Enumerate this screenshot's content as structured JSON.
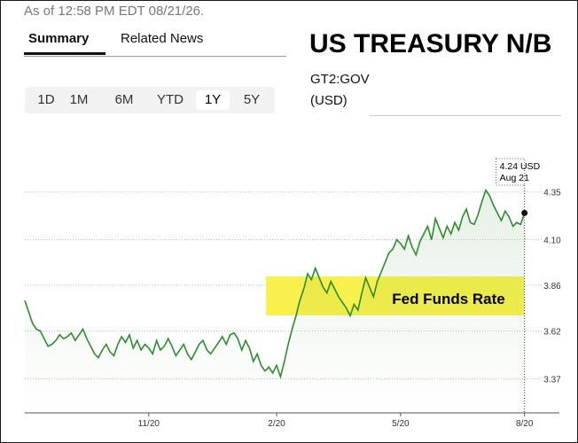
{
  "header": {
    "as_of": "As of 12:58 PM EDT 08/21/26.",
    "tabs": [
      "Summary",
      "Related News"
    ],
    "title": "US TREASURY N/B",
    "ticker": "GT2:GOV",
    "currency": "(USD)",
    "ranges": [
      "1D",
      "1M",
      "6M",
      "YTD",
      "1Y",
      "5Y"
    ],
    "selected_range": "1Y"
  },
  "chart_data": {
    "type": "line",
    "color": "#2e8b2e",
    "x": [
      0,
      1,
      2,
      3,
      4,
      5,
      6,
      7,
      8,
      9,
      10,
      11,
      12,
      13,
      14,
      15,
      16,
      17,
      18,
      19,
      20,
      21,
      22,
      23,
      24,
      25,
      26,
      27,
      28,
      29,
      30,
      31,
      32,
      33,
      34,
      35,
      36,
      37,
      38,
      39,
      40,
      41,
      42,
      43,
      44,
      45,
      46,
      47,
      48,
      49,
      50,
      51,
      52,
      53,
      54,
      55,
      56,
      57,
      58,
      59,
      60,
      61,
      62,
      63,
      64,
      65,
      66,
      67,
      68,
      69,
      70,
      71,
      72,
      73,
      74,
      75,
      76,
      77,
      78,
      79,
      80,
      81,
      82,
      83,
      84,
      85,
      86,
      87,
      88,
      89,
      90,
      91,
      92,
      93,
      94,
      95,
      96,
      97,
      98,
      99,
      100,
      101,
      102,
      103,
      104,
      105,
      106,
      107,
      108,
      109,
      110,
      111,
      112,
      113,
      114,
      115,
      116,
      117,
      118,
      119,
      120,
      121,
      122,
      123,
      124,
      125,
      126,
      127,
      128,
      129
    ],
    "values": [
      3.78,
      3.72,
      3.66,
      3.63,
      3.62,
      3.58,
      3.54,
      3.55,
      3.57,
      3.6,
      3.58,
      3.59,
      3.61,
      3.57,
      3.6,
      3.63,
      3.58,
      3.54,
      3.5,
      3.48,
      3.52,
      3.55,
      3.51,
      3.49,
      3.55,
      3.59,
      3.56,
      3.6,
      3.53,
      3.57,
      3.52,
      3.55,
      3.53,
      3.5,
      3.57,
      3.52,
      3.54,
      3.58,
      3.54,
      3.49,
      3.52,
      3.55,
      3.5,
      3.47,
      3.51,
      3.55,
      3.57,
      3.52,
      3.5,
      3.53,
      3.56,
      3.59,
      3.55,
      3.6,
      3.61,
      3.58,
      3.52,
      3.57,
      3.53,
      3.46,
      3.5,
      3.44,
      3.41,
      3.43,
      3.4,
      3.44,
      3.38,
      3.46,
      3.55,
      3.63,
      3.7,
      3.78,
      3.84,
      3.92,
      3.89,
      3.95,
      3.9,
      3.85,
      3.82,
      3.88,
      3.84,
      3.8,
      3.77,
      3.74,
      3.7,
      3.76,
      3.73,
      3.82,
      3.9,
      3.85,
      3.8,
      3.88,
      3.93,
      3.98,
      4.03,
      4.05,
      4.1,
      4.08,
      4.05,
      4.12,
      4.06,
      4.02,
      4.09,
      4.13,
      4.17,
      4.1,
      4.21,
      4.16,
      4.11,
      4.17,
      4.13,
      4.19,
      4.15,
      4.22,
      4.26,
      4.19,
      4.18,
      4.23,
      4.3,
      4.36,
      4.33,
      4.28,
      4.24,
      4.2,
      4.25,
      4.22,
      4.17,
      4.19,
      4.18,
      4.24
    ],
    "xlim": [
      0,
      138
    ],
    "xticks": [
      {
        "value": 32,
        "label": "11/20"
      },
      {
        "value": 65,
        "label": "2/20"
      },
      {
        "value": 97,
        "label": "5/20"
      },
      {
        "value": 129,
        "label": "8/20"
      }
    ],
    "ylim": [
      3.19,
      4.4
    ],
    "yticks": [
      3.37,
      3.62,
      3.86,
      {
        "value": 4.1,
        "label": "4.10"
      },
      4.35
    ],
    "grid": true,
    "tooltip": {
      "value_label": "4.24 USD",
      "date": "Aug 21"
    },
    "annotation": "Fed Funds Rate"
  }
}
